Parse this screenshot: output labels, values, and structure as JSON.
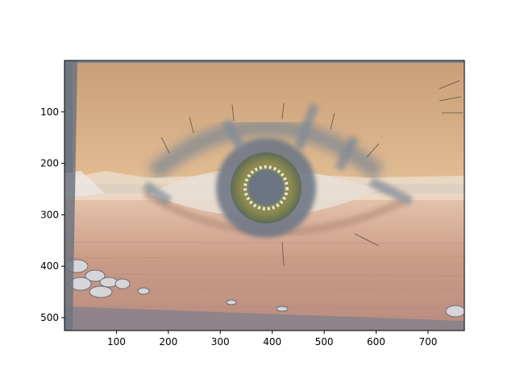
{
  "chart_data": {
    "type": "image",
    "title": "",
    "xlabel": "",
    "ylabel": "",
    "xlim": [
      0,
      770
    ],
    "ylim": [
      525,
      0
    ],
    "grid": false,
    "legend": "none",
    "x_ticks": [
      100,
      200,
      300,
      400,
      500,
      600,
      700
    ],
    "y_ticks": [
      100,
      200,
      300,
      400,
      500
    ],
    "image_content": "eye-over-sea-collage",
    "colors": {
      "skin": "#d7b18a",
      "sea": "#c99a86",
      "iris": "#6f7d5a",
      "pupil": "#6b7584",
      "overlay": "#7e8a98"
    }
  }
}
